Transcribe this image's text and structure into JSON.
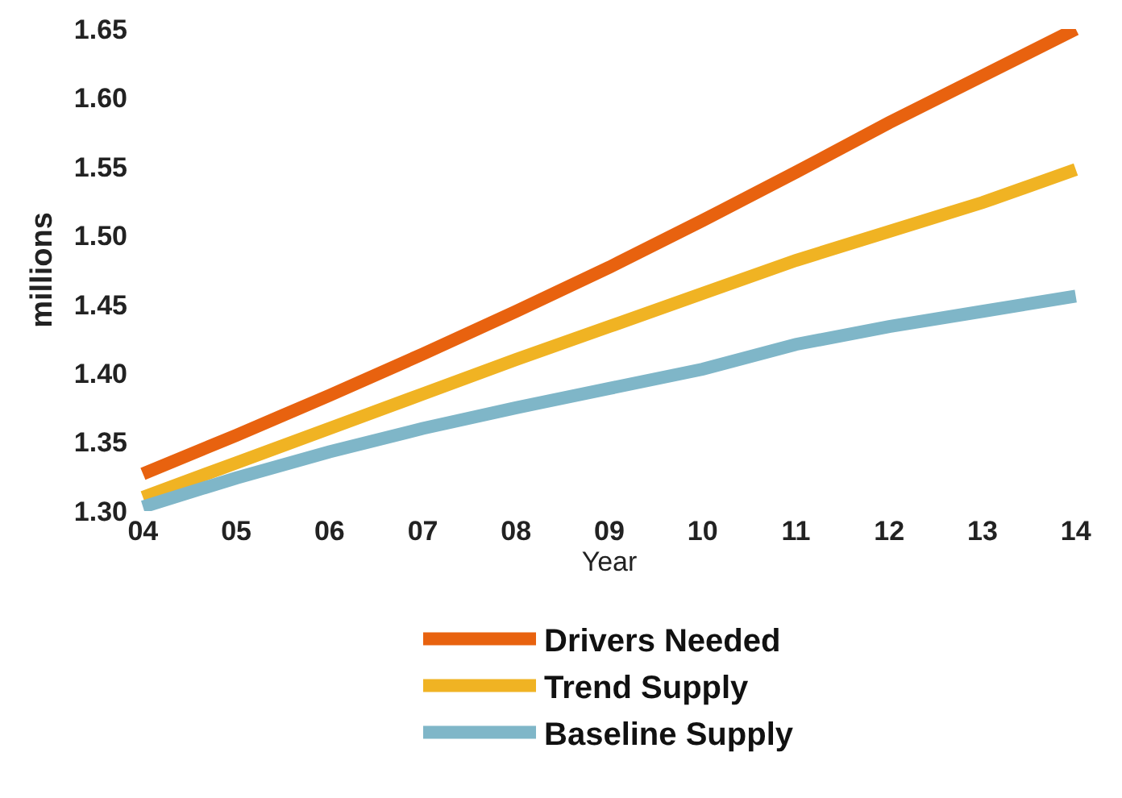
{
  "chart_data": {
    "type": "line",
    "xlabel": "Year",
    "ylabel": "millions",
    "categories": [
      "04",
      "05",
      "06",
      "07",
      "08",
      "09",
      "10",
      "11",
      "12",
      "13",
      "14"
    ],
    "series": [
      {
        "name": "Drivers Needed",
        "color": "#e8620f",
        "values": [
          1.327,
          1.355,
          1.384,
          1.414,
          1.445,
          1.477,
          1.511,
          1.546,
          1.582,
          1.616,
          1.65
        ]
      },
      {
        "name": "Trend Supply",
        "color": "#f0b323",
        "values": [
          1.31,
          1.335,
          1.36,
          1.385,
          1.41,
          1.434,
          1.458,
          1.482,
          1.503,
          1.524,
          1.548
        ]
      },
      {
        "name": "Baseline Supply",
        "color": "#7fb6c8",
        "values": [
          1.303,
          1.324,
          1.343,
          1.36,
          1.375,
          1.389,
          1.403,
          1.421,
          1.434,
          1.445,
          1.456
        ]
      }
    ],
    "ylim": [
      1.3,
      1.65
    ],
    "yticks": [
      {
        "value": 1.3,
        "label": "1.30"
      },
      {
        "value": 1.35,
        "label": "1.35"
      },
      {
        "value": 1.4,
        "label": "1.40"
      },
      {
        "value": 1.45,
        "label": "1.45"
      },
      {
        "value": 1.5,
        "label": "1.50"
      },
      {
        "value": 1.55,
        "label": "1.55"
      },
      {
        "value": 1.6,
        "label": "1.60"
      },
      {
        "value": 1.65,
        "label": "1.65"
      }
    ],
    "grid": false,
    "legend": "bottom",
    "marker": "none",
    "line_style": "solid"
  }
}
